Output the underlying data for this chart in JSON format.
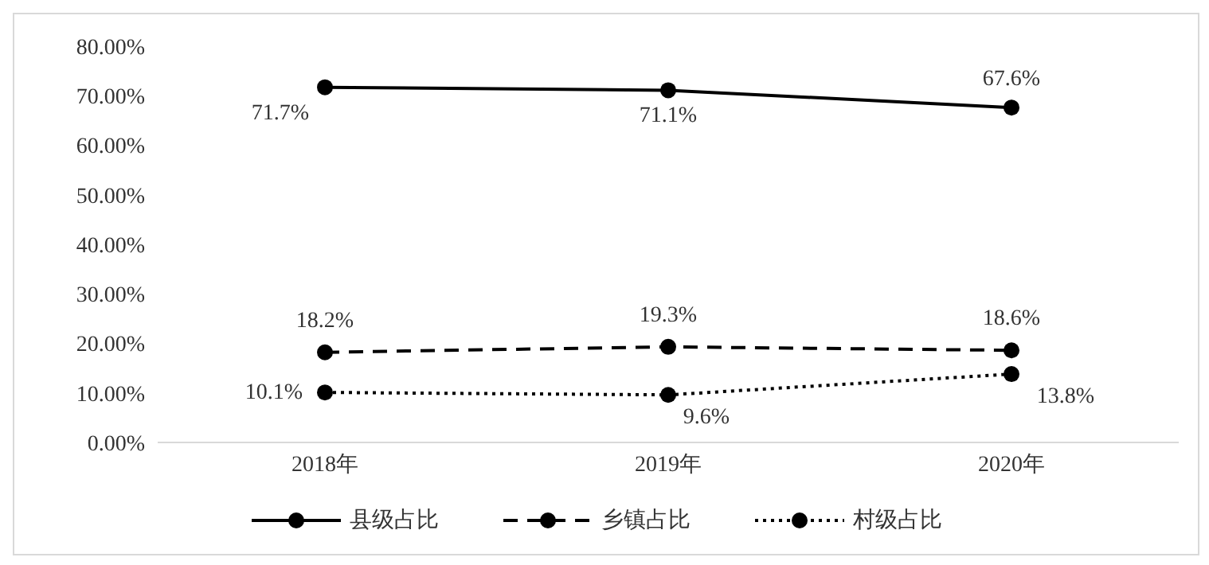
{
  "chart_data": {
    "type": "line",
    "categories": [
      "2018年",
      "2019年",
      "2020年"
    ],
    "series": [
      {
        "name": "县级占比",
        "color": "#000000",
        "line_style": "solid",
        "values": [
          71.7,
          71.1,
          67.6
        ],
        "value_labels": [
          "71.7%",
          "71.1%",
          "67.6%"
        ]
      },
      {
        "name": "乡镇占比",
        "color": "#000000",
        "line_style": "dashed",
        "values": [
          18.2,
          19.3,
          18.6
        ],
        "value_labels": [
          "18.2%",
          "19.3%",
          "18.6%"
        ]
      },
      {
        "name": "村级占比",
        "color": "#000000",
        "line_style": "dotted",
        "values": [
          10.1,
          9.6,
          13.8
        ],
        "value_labels": [
          "10.1%",
          "9.6%",
          "13.8%"
        ]
      }
    ],
    "ylim": [
      0,
      80
    ],
    "yticks": [
      {
        "value": 0,
        "label": "0.00%"
      },
      {
        "value": 10,
        "label": "10.00%"
      },
      {
        "value": 20,
        "label": "20.00%"
      },
      {
        "value": 30,
        "label": "30.00%"
      },
      {
        "value": 40,
        "label": "40.00%"
      },
      {
        "value": 50,
        "label": "50.00%"
      },
      {
        "value": 60,
        "label": "60.00%"
      },
      {
        "value": 70,
        "label": "70.00%"
      },
      {
        "value": 80,
        "label": "80.00%"
      }
    ],
    "grid": false,
    "legend": "bottom",
    "marker": "circle"
  }
}
